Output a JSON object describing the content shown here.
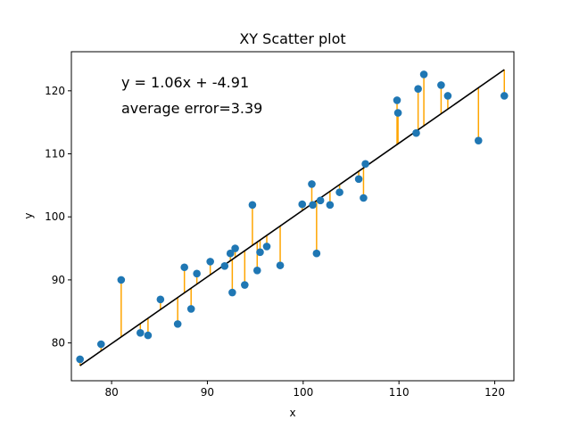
{
  "chart_data": {
    "type": "scatter",
    "title": "XY Scatter plot",
    "xlabel": "x",
    "ylabel": "y",
    "xlim": [
      75.8,
      122.0
    ],
    "ylim": [
      74.0,
      126.2
    ],
    "xticks": [
      80,
      90,
      100,
      110,
      120
    ],
    "yticks": [
      80,
      90,
      100,
      110,
      120
    ],
    "grid": false,
    "annotations": [
      "y = 1.06x + -4.91",
      "average error=3.39"
    ],
    "fit": {
      "slope": 1.06,
      "intercept": -4.91,
      "x_range": [
        76.7,
        121.0
      ]
    },
    "colors": {
      "points": "#1f77b4",
      "residuals": "#ffa500",
      "fit_line": "#000000"
    },
    "points": [
      {
        "x": 76.7,
        "y": 77.4
      },
      {
        "x": 78.9,
        "y": 79.8
      },
      {
        "x": 81.0,
        "y": 90.0
      },
      {
        "x": 83.0,
        "y": 81.6
      },
      {
        "x": 83.8,
        "y": 81.2
      },
      {
        "x": 85.1,
        "y": 86.9
      },
      {
        "x": 86.9,
        "y": 83.0
      },
      {
        "x": 87.6,
        "y": 92.0
      },
      {
        "x": 88.3,
        "y": 85.4
      },
      {
        "x": 88.9,
        "y": 91.0
      },
      {
        "x": 90.3,
        "y": 92.9
      },
      {
        "x": 91.8,
        "y": 92.2
      },
      {
        "x": 92.4,
        "y": 94.2
      },
      {
        "x": 92.6,
        "y": 88.0
      },
      {
        "x": 92.9,
        "y": 95.0
      },
      {
        "x": 93.9,
        "y": 89.2
      },
      {
        "x": 94.7,
        "y": 101.9
      },
      {
        "x": 95.2,
        "y": 91.5
      },
      {
        "x": 95.5,
        "y": 94.4
      },
      {
        "x": 96.2,
        "y": 95.3
      },
      {
        "x": 97.6,
        "y": 92.3
      },
      {
        "x": 99.9,
        "y": 102.0
      },
      {
        "x": 100.9,
        "y": 105.2
      },
      {
        "x": 101.0,
        "y": 101.9
      },
      {
        "x": 101.4,
        "y": 94.2
      },
      {
        "x": 101.8,
        "y": 102.6
      },
      {
        "x": 102.8,
        "y": 101.9
      },
      {
        "x": 103.8,
        "y": 103.9
      },
      {
        "x": 105.8,
        "y": 106.0
      },
      {
        "x": 106.3,
        "y": 103.0
      },
      {
        "x": 106.5,
        "y": 108.4
      },
      {
        "x": 109.8,
        "y": 118.5
      },
      {
        "x": 109.9,
        "y": 116.5
      },
      {
        "x": 111.8,
        "y": 113.3
      },
      {
        "x": 112.0,
        "y": 120.3
      },
      {
        "x": 112.6,
        "y": 122.6
      },
      {
        "x": 114.4,
        "y": 120.9
      },
      {
        "x": 115.1,
        "y": 119.2
      },
      {
        "x": 118.3,
        "y": 112.1
      },
      {
        "x": 121.0,
        "y": 119.2
      }
    ]
  }
}
